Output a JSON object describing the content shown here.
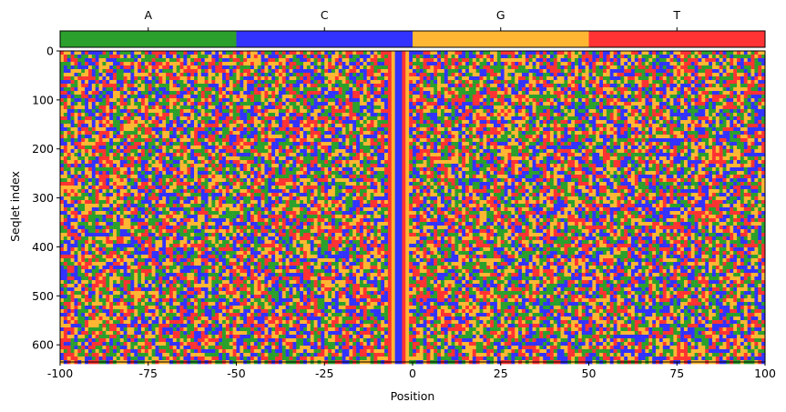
{
  "chart_data": {
    "type": "heatmap",
    "title": "",
    "xlabel": "Position",
    "ylabel": "Seqlet index",
    "xlim": [
      -100,
      100
    ],
    "ylim": [
      635,
      0
    ],
    "x_ticks": [
      -100,
      -75,
      -50,
      -25,
      0,
      25,
      50,
      75,
      100
    ],
    "x_tick_labels": [
      "-100",
      "-75",
      "-50",
      "-25",
      "0",
      "25",
      "50",
      "75",
      "100"
    ],
    "y_ticks": [
      0,
      100,
      200,
      300,
      400,
      500,
      600
    ],
    "y_tick_labels": [
      "0",
      "100",
      "200",
      "300",
      "400",
      "500",
      "600"
    ],
    "legend": {
      "placement": "top",
      "entries": [
        {
          "label": "A",
          "color": "#2ca02c"
        },
        {
          "label": "C",
          "color": "#3333ff"
        },
        {
          "label": "G",
          "color": "#ffb733"
        },
        {
          "label": "T",
          "color": "#ff3333"
        }
      ]
    },
    "conserved_columns": [
      {
        "position": -7,
        "base": "T"
      },
      {
        "position": -6,
        "base": "G"
      },
      {
        "position": -5,
        "base": "C"
      },
      {
        "position": -4,
        "base": "C"
      },
      {
        "position": -3,
        "base": "T"
      },
      {
        "position": -2,
        "base": "G"
      }
    ],
    "background": "random per-position bases in the remaining columns",
    "grid": false
  }
}
